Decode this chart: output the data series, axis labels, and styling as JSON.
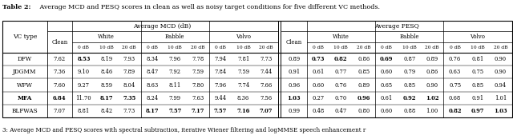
{
  "title_bold": "Table 2:",
  "title_rest": " Average MCD and PESQ scores in clean as well as noisy target conditions for five different VC methods.",
  "caption": "3: Average MCD and PESQ scores with spectral subtraction, iterative Wiener filtering and logMMSE speech enhancement r",
  "vc_types": [
    "DFW",
    "JDGMM",
    "WFW",
    "MFA",
    "BLFWAS"
  ],
  "mcd_data": [
    [
      "7.62",
      "8.53",
      "8.19",
      "7.93",
      "8.34",
      "7.96",
      "7.78",
      "7.94",
      "7.81",
      "7.73"
    ],
    [
      "7.36",
      "9.10",
      "8.46",
      "7.89",
      "8.47",
      "7.92",
      "7.59",
      "7.84",
      "7.59",
      "7.44"
    ],
    [
      "7.60",
      "9.27",
      "8.59",
      "8.04",
      "8.63",
      "8.11",
      "7.80",
      "7.96",
      "7.74",
      "7.66"
    ],
    [
      "6.84",
      "11.70",
      "8.17",
      "7.35",
      "8.24",
      "7.99",
      "7.63",
      "9.44",
      "8.36",
      "7.56"
    ],
    [
      "7.07",
      "8.81",
      "8.42",
      "7.73",
      "8.17",
      "7.57",
      "7.17",
      "7.57",
      "7.16",
      "7.07"
    ]
  ],
  "pesq_data": [
    [
      "0.89",
      "0.73",
      "0.82",
      "0.86",
      "0.69",
      "0.87",
      "0.89",
      "0.76",
      "0.81",
      "0.90"
    ],
    [
      "0.91",
      "0.61",
      "0.77",
      "0.85",
      "0.60",
      "0.79",
      "0.86",
      "0.63",
      "0.75",
      "0.90"
    ],
    [
      "0.96",
      "0.60",
      "0.76",
      "0.89",
      "0.65",
      "0.85",
      "0.90",
      "0.75",
      "0.85",
      "0.94"
    ],
    [
      "1.03",
      "0.27",
      "0.70",
      "0.96",
      "0.61",
      "0.92",
      "1.02",
      "0.68",
      "0.91",
      "1.01"
    ],
    [
      "0.99",
      "0.48",
      "0.47",
      "0.80",
      "0.60",
      "0.88",
      "1.00",
      "0.82",
      "0.97",
      "1.03"
    ]
  ],
  "mcd_bold": [
    [
      false,
      true,
      false,
      false,
      false,
      false,
      false,
      false,
      false,
      false
    ],
    [
      false,
      false,
      false,
      false,
      false,
      false,
      false,
      false,
      false,
      false
    ],
    [
      false,
      false,
      false,
      false,
      false,
      false,
      false,
      false,
      false,
      false
    ],
    [
      true,
      false,
      true,
      true,
      false,
      false,
      false,
      false,
      false,
      false
    ],
    [
      false,
      false,
      false,
      false,
      true,
      true,
      true,
      true,
      true,
      true
    ]
  ],
  "pesq_bold": [
    [
      false,
      true,
      true,
      false,
      true,
      false,
      false,
      false,
      false,
      false
    ],
    [
      false,
      false,
      false,
      false,
      false,
      false,
      false,
      false,
      false,
      false
    ],
    [
      false,
      false,
      false,
      false,
      false,
      false,
      false,
      false,
      false,
      false
    ],
    [
      true,
      false,
      false,
      true,
      false,
      true,
      true,
      false,
      false,
      false
    ],
    [
      false,
      false,
      false,
      false,
      false,
      false,
      false,
      true,
      true,
      true
    ]
  ],
  "vc_bold": [
    false,
    false,
    false,
    true,
    false
  ]
}
